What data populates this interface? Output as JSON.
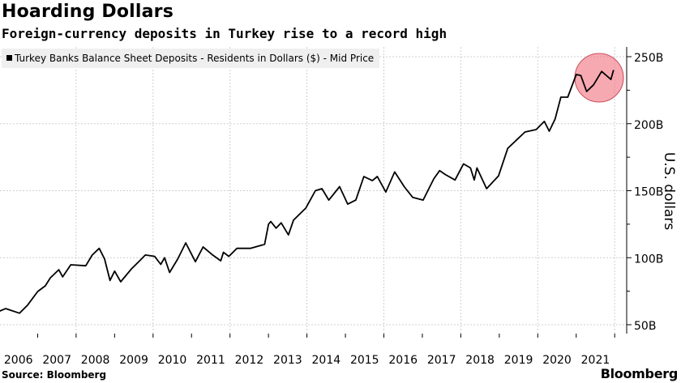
{
  "title": "Hoarding Dollars",
  "subtitle": "Foreign-currency deposits in Turkey rise to a record high",
  "source": "Source: Bloomberg",
  "logo": "Bloomberg",
  "chart_data": {
    "type": "line",
    "title": "Hoarding Dollars",
    "subtitle": "Foreign-currency deposits in Turkey rise to a record high",
    "ylabel": "U.S. dollars",
    "xlabel": "",
    "ylim": [
      40,
      260
    ],
    "xlim": [
      2006,
      2022.3
    ],
    "grid": true,
    "legend_placement": "top-left",
    "y_ticks": [
      {
        "v": 250,
        "label": "250B"
      },
      {
        "v": 200,
        "label": "200B"
      },
      {
        "v": 150,
        "label": "150B"
      },
      {
        "v": 100,
        "label": "100B"
      },
      {
        "v": 50,
        "label": "50B"
      }
    ],
    "x_ticks": [
      "2006",
      "2007",
      "2008",
      "2009",
      "2010",
      "2011",
      "2012",
      "2013",
      "2014",
      "2015",
      "2016",
      "2017",
      "2018",
      "2019",
      "2020",
      "2021"
    ],
    "series": [
      {
        "name": "Turkey Banks Balance Sheet Deposits - Residents in Dollars ($) - Mid Price",
        "color": "#000000",
        "x": [
          2006.0,
          2006.17,
          2006.53,
          2006.74,
          2007.0,
          2007.2,
          2007.33,
          2007.55,
          2007.65,
          2007.86,
          2008.25,
          2008.42,
          2008.6,
          2008.74,
          2008.88,
          2009.0,
          2009.16,
          2009.44,
          2009.65,
          2009.8,
          2010.04,
          2010.2,
          2010.3,
          2010.43,
          2010.64,
          2010.85,
          2011.1,
          2011.3,
          2011.55,
          2011.76,
          2011.83,
          2011.97,
          2012.18,
          2012.53,
          2012.9,
          2013.0,
          2013.06,
          2013.2,
          2013.33,
          2013.52,
          2013.65,
          2013.97,
          2014.22,
          2014.39,
          2014.57,
          2014.85,
          2015.06,
          2015.27,
          2015.48,
          2015.7,
          2015.83,
          2016.05,
          2016.28,
          2016.53,
          2016.75,
          2017.02,
          2017.3,
          2017.45,
          2017.6,
          2017.85,
          2018.07,
          2018.25,
          2018.35,
          2018.42,
          2018.67,
          2018.98,
          2019.22,
          2019.4,
          2019.67,
          2019.96,
          2020.17,
          2020.3,
          2020.45,
          2020.6,
          2020.78,
          2021.0,
          2021.12,
          2021.27,
          2021.45,
          2021.66,
          2021.9,
          2021.97
        ],
        "values": [
          60,
          62,
          58.6,
          64.7,
          74.8,
          79,
          85,
          91,
          85.7,
          94.7,
          94,
          102,
          107,
          99,
          83,
          90,
          82,
          91.7,
          97.7,
          102,
          101,
          95,
          100,
          89,
          99,
          111,
          97,
          108,
          102,
          97.7,
          104,
          101,
          107,
          107,
          110,
          125,
          127,
          122,
          126,
          117,
          128,
          137,
          150,
          151.5,
          143,
          153,
          140,
          143,
          160.6,
          157.5,
          160.6,
          149,
          164,
          153,
          145,
          143,
          159,
          165,
          162,
          158,
          170,
          167,
          158,
          167,
          151.5,
          161,
          181.6,
          186.5,
          193.8,
          195.6,
          201.7,
          194.4,
          203.5,
          219.8,
          219.8,
          236.7,
          236,
          224,
          229,
          239,
          233,
          240
        ]
      }
    ],
    "annotations": [
      {
        "type": "circle-highlight",
        "around_x": [
          2021.0,
          2022.0
        ],
        "color": "#f4a0a8"
      }
    ]
  }
}
